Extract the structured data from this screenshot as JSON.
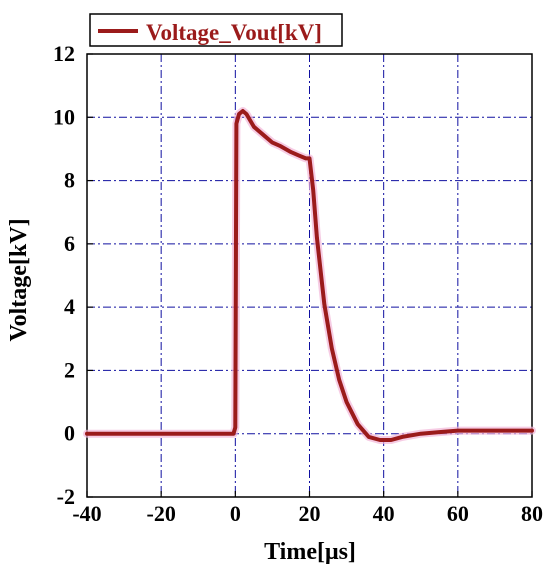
{
  "chart_data": {
    "type": "line",
    "title": "",
    "xlabel": "Time[μs]",
    "ylabel": "Voltage[kV]",
    "xlim": [
      -40,
      80
    ],
    "ylim": [
      -2,
      12
    ],
    "xticks": [
      "-40",
      "-20",
      "0",
      "20",
      "40",
      "60",
      "80"
    ],
    "yticks": [
      "-2",
      "0",
      "2",
      "4",
      "6",
      "8",
      "10",
      "12"
    ],
    "grid": true,
    "legend": {
      "position": "top-left",
      "entries": [
        "Voltage_Vout[kV]"
      ]
    },
    "series": [
      {
        "name": "Voltage_Vout[kV]",
        "color": "#9b1b1b",
        "x": [
          -40,
          -30,
          -20,
          -10,
          -0.5,
          0,
          0.3,
          1,
          2,
          3,
          5,
          8,
          10,
          12,
          15,
          17,
          19,
          20,
          21,
          22,
          24,
          26,
          28,
          30,
          33,
          36,
          39,
          40,
          42,
          45,
          50,
          55,
          60,
          70,
          80
        ],
        "y": [
          0,
          0,
          0,
          0,
          0,
          0.2,
          9.8,
          10.1,
          10.2,
          10.1,
          9.7,
          9.4,
          9.2,
          9.1,
          8.9,
          8.8,
          8.7,
          8.7,
          7.7,
          6.2,
          4.1,
          2.7,
          1.7,
          1.0,
          0.3,
          -0.1,
          -0.2,
          -0.2,
          -0.2,
          -0.1,
          0,
          0.05,
          0.1,
          0.1,
          0.1
        ]
      }
    ]
  }
}
